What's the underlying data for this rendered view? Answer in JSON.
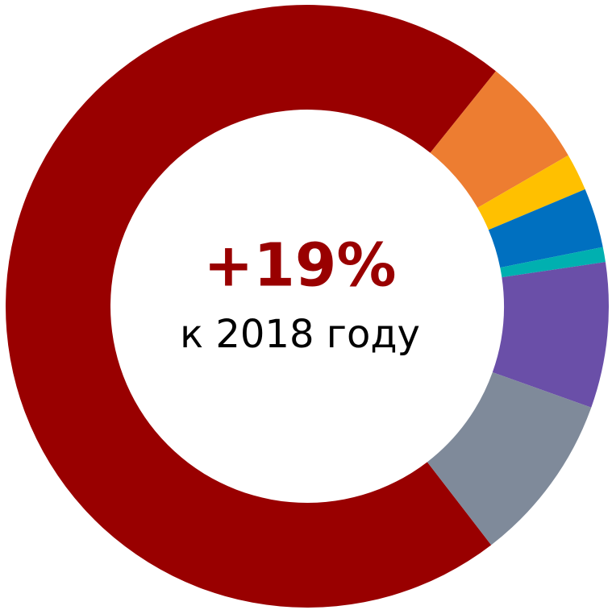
{
  "chart_data": {
    "type": "donut",
    "values": [
      71.2,
      5.9,
      2,
      3.2,
      0.8,
      7.8,
      9.1
    ],
    "colors": [
      "#990000",
      "#ed7d31",
      "#ffc000",
      "#0070c0",
      "#00b0b0",
      "#6a4fa8",
      "#7f8a9a"
    ],
    "center_value": "+19%",
    "center_text": "к 2018 году"
  }
}
